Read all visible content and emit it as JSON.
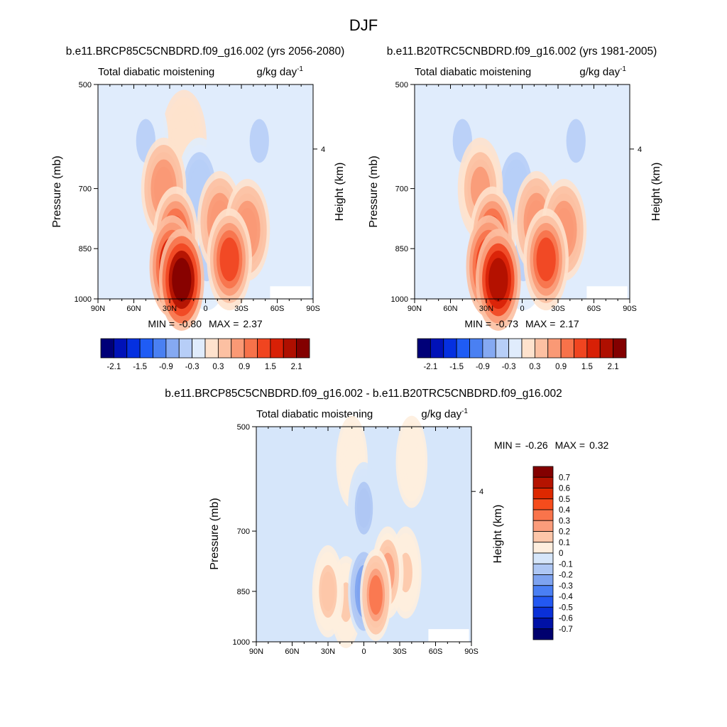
{
  "figure": {
    "title": "DJF"
  },
  "chart_data": [
    {
      "type": "heatmap",
      "id": "future",
      "title": "b.e11.BRCP85C5CNBDRD.f09_g16.002 (yrs 2056-2080)",
      "left_label": "Total diabatic moistening",
      "units": "g/kg day",
      "units_exp": "-1",
      "ylabel": "Pressure (mb)",
      "ylabel_right": "Height (km)",
      "x_ticks": [
        "90N",
        "60N",
        "30N",
        "0",
        "30S",
        "60S",
        "90S"
      ],
      "y_ticks": [
        "500",
        "700",
        "850",
        "1000"
      ],
      "right_ticks": [
        "4"
      ],
      "min_label": "MIN =",
      "min_value": "-0.80",
      "max_label": "MAX =",
      "max_value": "2.37",
      "colorbar": {
        "orientation": "horizontal",
        "labels": [
          "-2.1",
          "-1.5",
          "-0.9",
          "-0.3",
          "0.3",
          "0.9",
          "1.5",
          "2.1"
        ],
        "colors": [
          "#000078",
          "#0012b8",
          "#0530e0",
          "#1f5cf5",
          "#4a80f2",
          "#85a9f2",
          "#b7cef7",
          "#e0ecfc",
          "#fee2cd",
          "#fcc0a2",
          "#fa9975",
          "#f7724a",
          "#f04520",
          "#d82006",
          "#af0f00",
          "#830000"
        ]
      },
      "features": [
        {
          "lat": 20,
          "p": 940,
          "level": 2.3
        },
        {
          "lat": 28,
          "p": 900,
          "level": 1.9
        },
        {
          "lat": 25,
          "p": 820,
          "level": 1.4
        },
        {
          "lat": 35,
          "p": 700,
          "level": 0.8
        },
        {
          "lat": 18,
          "p": 600,
          "level": 0.3
        },
        {
          "lat": -20,
          "p": 880,
          "level": 1.4
        },
        {
          "lat": -12,
          "p": 780,
          "level": 0.9
        },
        {
          "lat": -35,
          "p": 800,
          "level": 0.9
        },
        {
          "lat": 5,
          "p": 700,
          "level": -0.5
        },
        {
          "lat": -1,
          "p": 880,
          "level": -0.3
        },
        {
          "lat": 50,
          "p": 600,
          "level": -0.3
        },
        {
          "lat": -45,
          "p": 600,
          "level": -0.3
        }
      ]
    },
    {
      "type": "heatmap",
      "id": "historical",
      "title": "b.e11.B20TRC5CNBDRD.f09_g16.002 (yrs 1981-2005)",
      "left_label": "Total diabatic moistening",
      "units": "g/kg day",
      "units_exp": "-1",
      "ylabel": "Pressure (mb)",
      "ylabel_right": "Height (km)",
      "x_ticks": [
        "90N",
        "60N",
        "30N",
        "0",
        "30S",
        "60S",
        "90S"
      ],
      "y_ticks": [
        "500",
        "700",
        "850",
        "1000"
      ],
      "right_ticks": [
        "4"
      ],
      "min_label": "MIN =",
      "min_value": "-0.73",
      "max_label": "MAX =",
      "max_value": "2.17",
      "colorbar": {
        "orientation": "horizontal",
        "labels": [
          "-2.1",
          "-1.5",
          "-0.9",
          "-0.3",
          "0.3",
          "0.9",
          "1.5",
          "2.1"
        ],
        "colors": [
          "#000078",
          "#0012b8",
          "#0530e0",
          "#1f5cf5",
          "#4a80f2",
          "#85a9f2",
          "#b7cef7",
          "#e0ecfc",
          "#fee2cd",
          "#fcc0a2",
          "#fa9975",
          "#f7724a",
          "#f04520",
          "#d82006",
          "#af0f00",
          "#830000"
        ]
      },
      "features": [
        {
          "lat": 20,
          "p": 940,
          "level": 2.1
        },
        {
          "lat": 28,
          "p": 900,
          "level": 1.7
        },
        {
          "lat": 25,
          "p": 820,
          "level": 1.3
        },
        {
          "lat": 35,
          "p": 700,
          "level": 0.7
        },
        {
          "lat": -20,
          "p": 880,
          "level": 1.3
        },
        {
          "lat": -12,
          "p": 780,
          "level": 0.8
        },
        {
          "lat": -35,
          "p": 800,
          "level": 0.8
        },
        {
          "lat": 5,
          "p": 700,
          "level": -0.5
        },
        {
          "lat": -1,
          "p": 880,
          "level": -0.3
        },
        {
          "lat": 50,
          "p": 600,
          "level": -0.3
        },
        {
          "lat": -45,
          "p": 600,
          "level": -0.3
        }
      ]
    },
    {
      "type": "heatmap",
      "id": "difference",
      "title": "b.e11.BRCP85C5CNBDRD.f09_g16.002 - b.e11.B20TRC5CNBDRD.f09_g16.002",
      "left_label": "Total diabatic moistening",
      "units": "g/kg day",
      "units_exp": "-1",
      "ylabel": "Pressure (mb)",
      "ylabel_right": "Height (km)",
      "x_ticks": [
        "90N",
        "60N",
        "30N",
        "0",
        "30S",
        "60S",
        "90S"
      ],
      "y_ticks": [
        "500",
        "700",
        "850",
        "1000"
      ],
      "right_ticks": [
        "4"
      ],
      "min_label": "MIN =",
      "min_value": "-0.26",
      "max_label": "MAX =",
      "max_value": "0.32",
      "colorbar": {
        "orientation": "vertical",
        "labels": [
          "0.7",
          "0.6",
          "0.5",
          "0.4",
          "0.3",
          "0.2",
          "0.1",
          "0",
          "-0.1",
          "-0.2",
          "-0.3",
          "-0.4",
          "-0.5",
          "-0.6",
          "-0.7"
        ],
        "colors": [
          "#830000",
          "#b51300",
          "#dd2800",
          "#f64c1c",
          "#f9744b",
          "#fb9c7b",
          "#fdc6a9",
          "#feeede",
          "#d6e6fa",
          "#aec7f4",
          "#7ea3f0",
          "#4a7ff4",
          "#2358f2",
          "#0a30d8",
          "#0011a6",
          "#00006e"
        ]
      },
      "features": [
        {
          "lat": -10,
          "p": 860,
          "level": 0.3
        },
        {
          "lat": -20,
          "p": 800,
          "level": 0.2
        },
        {
          "lat": 30,
          "p": 850,
          "level": 0.15
        },
        {
          "lat": 15,
          "p": 880,
          "level": 0.12
        },
        {
          "lat": -35,
          "p": 800,
          "level": 0.1
        },
        {
          "lat": 10,
          "p": 560,
          "level": 0.05
        },
        {
          "lat": -40,
          "p": 560,
          "level": 0.05
        },
        {
          "lat": 0,
          "p": 850,
          "level": -0.26
        },
        {
          "lat": 0,
          "p": 650,
          "level": -0.15
        },
        {
          "lat": 60,
          "p": 650,
          "level": -0.05
        }
      ]
    }
  ]
}
